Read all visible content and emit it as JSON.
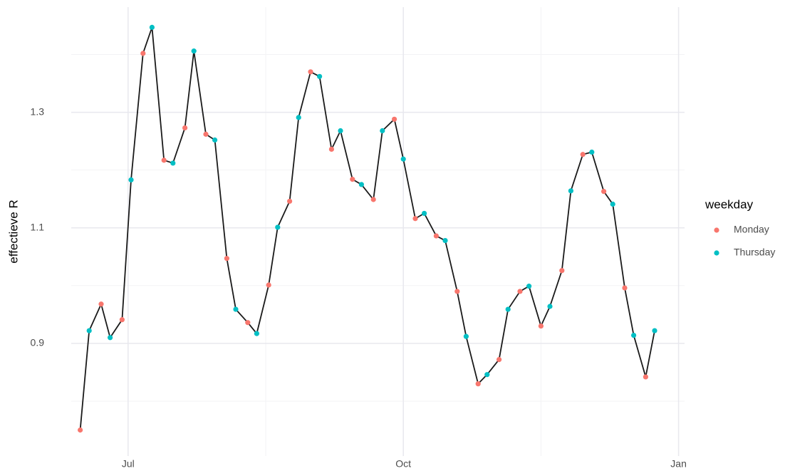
{
  "chart_data": {
    "type": "line",
    "y_label": "effectieve R",
    "xlim": [
      -19,
      186
    ],
    "xticks": [
      {
        "value": 0,
        "label": "Jul"
      },
      {
        "value": 92,
        "label": "Oct"
      },
      {
        "value": 184,
        "label": "Jan"
      }
    ],
    "xminor": [
      46,
      138
    ],
    "ylim": [
      0.705,
      1.482
    ],
    "yticks": [
      0.9,
      1.1,
      1.3
    ],
    "yminor": [
      0.8,
      1.0,
      1.2,
      1.4
    ],
    "grid": true,
    "line_color": "#1a1a1a",
    "legend_title": "weekday",
    "legend_position": "right",
    "series": [
      {
        "name": "Monday",
        "color": "#f8766d",
        "x": [
          -16,
          -9,
          -2,
          5,
          12,
          19,
          26,
          33,
          40,
          47,
          54,
          61,
          68,
          75,
          82,
          89,
          96,
          103,
          110,
          117,
          124,
          131,
          138,
          145,
          152,
          159,
          166,
          173
        ],
        "values": [
          0.75,
          0.968,
          0.941,
          1.402,
          1.217,
          1.273,
          1.262,
          1.047,
          0.936,
          1.001,
          1.146,
          1.37,
          1.236,
          1.184,
          1.149,
          1.288,
          1.116,
          1.086,
          0.99,
          0.83,
          0.872,
          0.99,
          0.93,
          1.026,
          1.227,
          1.163,
          0.996,
          0.842
        ]
      },
      {
        "name": "Thursday",
        "color": "#00bfc4",
        "x": [
          -13,
          -6,
          1,
          8,
          15,
          22,
          29,
          36,
          43,
          50,
          57,
          64,
          71,
          78,
          85,
          92,
          99,
          106,
          113,
          120,
          127,
          134,
          141,
          148,
          155,
          162,
          169,
          176
        ],
        "values": [
          0.922,
          0.91,
          1.183,
          1.447,
          1.212,
          1.406,
          1.252,
          0.959,
          0.917,
          1.101,
          1.291,
          1.362,
          1.268,
          1.175,
          1.268,
          1.219,
          1.125,
          1.078,
          0.912,
          0.846,
          0.959,
          0.999,
          0.964,
          1.164,
          1.231,
          1.141,
          0.914,
          0.922
        ]
      }
    ]
  }
}
